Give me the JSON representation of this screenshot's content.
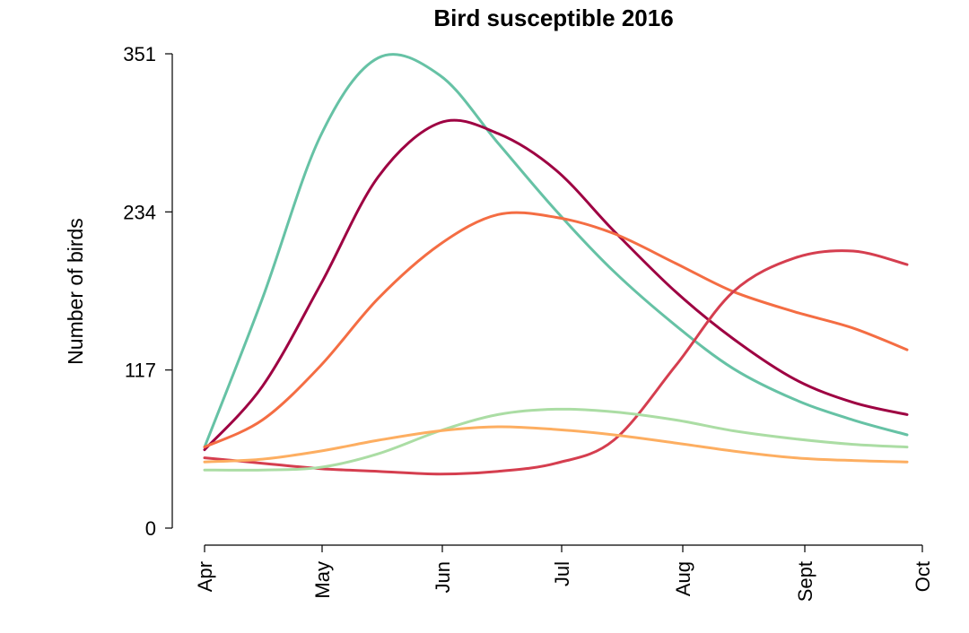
{
  "chart_data": {
    "type": "line",
    "title": "Bird susceptible 2016",
    "xlabel": "",
    "ylabel": "Number of birds",
    "x_ticks": [
      "Apr",
      "May",
      "Jun",
      "Jul",
      "Aug",
      "Sept",
      "Oct"
    ],
    "y_ticks": [
      0,
      117,
      234,
      351
    ],
    "ylim": [
      0,
      351
    ],
    "grid": false,
    "legend": "none",
    "x": [
      "2016-04-01",
      "2016-04-16",
      "2016-05-01",
      "2016-05-16",
      "2016-06-01",
      "2016-06-16",
      "2016-07-01",
      "2016-07-16",
      "2016-08-01",
      "2016-08-16",
      "2016-09-01",
      "2016-09-16",
      "2016-09-30"
    ],
    "series": [
      {
        "color": "#66c2a5",
        "values": [
          60,
          170,
          290,
          348,
          335,
          285,
          235,
          190,
          150,
          118,
          95,
          80,
          69
        ]
      },
      {
        "color": "#9e0142",
        "values": [
          58,
          105,
          180,
          260,
          300,
          292,
          265,
          220,
          175,
          140,
          110,
          93,
          84
        ]
      },
      {
        "color": "#f46d43",
        "values": [
          60,
          80,
          120,
          170,
          210,
          232,
          230,
          218,
          196,
          175,
          160,
          148,
          132
        ]
      },
      {
        "color": "#d53e4f",
        "values": [
          52,
          48,
          44,
          42,
          40,
          42,
          48,
          65,
          120,
          175,
          200,
          205,
          195
        ]
      },
      {
        "color": "#abdda4",
        "values": [
          43,
          43,
          45,
          55,
          72,
          84,
          88,
          86,
          80,
          72,
          66,
          62,
          60
        ]
      },
      {
        "color": "#fdae61",
        "values": [
          49,
          51,
          57,
          65,
          72,
          75,
          73,
          69,
          63,
          57,
          52,
          50,
          49
        ]
      }
    ]
  }
}
